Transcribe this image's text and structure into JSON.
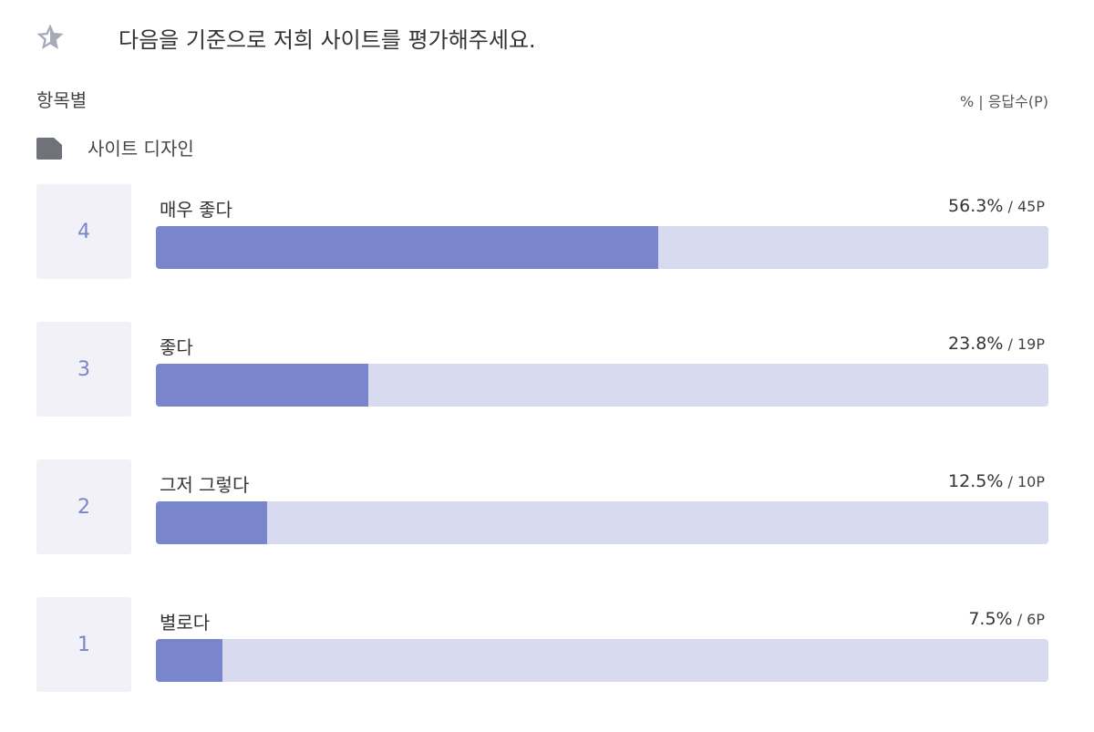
{
  "header": {
    "title": "다음을 기준으로 저희 사이트를 평가해주세요."
  },
  "section": {
    "label": "항목별",
    "legend": "% | 응답수(P)"
  },
  "category": {
    "title": "사이트 디자인"
  },
  "results": {
    "xlim": [
      0,
      100
    ],
    "separator": "/",
    "items": [
      {
        "score": 4,
        "label": "매우 좋다",
        "percent": 56.3,
        "percent_label": "56.3%",
        "count_label": "45P"
      },
      {
        "score": 3,
        "label": "좋다",
        "percent": 23.8,
        "percent_label": "23.8%",
        "count_label": "19P"
      },
      {
        "score": 2,
        "label": "그저 그렇다",
        "percent": 12.5,
        "percent_label": "12.5%",
        "count_label": "10P"
      },
      {
        "score": 1,
        "label": "별로다",
        "percent": 7.5,
        "percent_label": "7.5%",
        "count_label": "6P"
      }
    ]
  }
}
